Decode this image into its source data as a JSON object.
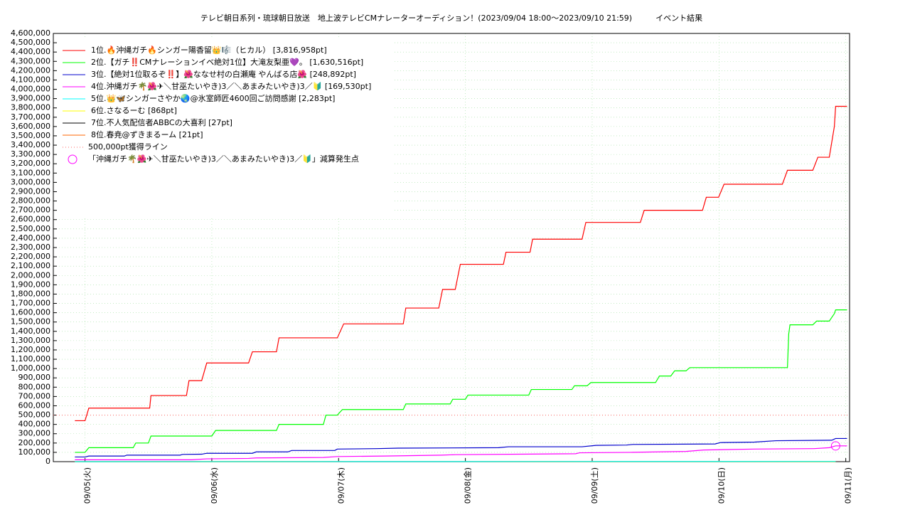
{
  "chart_data": {
    "type": "line",
    "title": "テレビ朝日系列・琉球朝日放送　地上波テレビCMナレーターオーディション！(2023/09/04 18:00〜2023/09/10 21:59)　　　イベント結果",
    "xlim": [
      4.75,
      11.03
    ],
    "xticks": [
      {
        "value": 5,
        "label": "09/05(火)"
      },
      {
        "value": 6,
        "label": "09/06(水)"
      },
      {
        "value": 7,
        "label": "09/07(木)"
      },
      {
        "value": 8,
        "label": "09/08(金)"
      },
      {
        "value": 9,
        "label": "09/09(土)"
      },
      {
        "value": 10,
        "label": "09/10(日)"
      },
      {
        "value": 11,
        "label": "09/11(月)"
      }
    ],
    "ylim": [
      0,
      4600000
    ],
    "yticks": [
      0,
      {
        "value": 100000,
        "label": "100,000"
      },
      {
        "value": 200000,
        "label": "200,000"
      },
      {
        "value": 300000,
        "label": "300,000"
      },
      {
        "value": 400000,
        "label": "400,000"
      },
      {
        "value": 500000,
        "label": "500,000"
      },
      {
        "value": 600000,
        "label": "600,000"
      },
      {
        "value": 700000,
        "label": "700,000"
      },
      {
        "value": 800000,
        "label": "800,000"
      },
      {
        "value": 900000,
        "label": "900,000"
      },
      {
        "value": 1000000,
        "label": "1,000,000"
      },
      {
        "value": 1100000,
        "label": "1,100,000"
      },
      {
        "value": 1200000,
        "label": "1,200,000"
      },
      {
        "value": 1300000,
        "label": "1,300,000"
      },
      {
        "value": 1400000,
        "label": "1,400,000"
      },
      {
        "value": 1500000,
        "label": "1,500,000"
      },
      {
        "value": 1600000,
        "label": "1,600,000"
      },
      {
        "value": 1700000,
        "label": "1,700,000"
      },
      {
        "value": 1800000,
        "label": "1,800,000"
      },
      {
        "value": 1900000,
        "label": "1,900,000"
      },
      {
        "value": 2000000,
        "label": "2,000,000"
      },
      {
        "value": 2100000,
        "label": "2,100,000"
      },
      {
        "value": 2200000,
        "label": "2,200,000"
      },
      {
        "value": 2300000,
        "label": "2,300,000"
      },
      {
        "value": 2400000,
        "label": "2,400,000"
      },
      {
        "value": 2500000,
        "label": "2,500,000"
      },
      {
        "value": 2600000,
        "label": "2,600,000"
      },
      {
        "value": 2700000,
        "label": "2,700,000"
      },
      {
        "value": 2800000,
        "label": "2,800,000"
      },
      {
        "value": 2900000,
        "label": "2,900,000"
      },
      {
        "value": 3000000,
        "label": "3,000,000"
      },
      {
        "value": 3100000,
        "label": "3,100,000"
      },
      {
        "value": 3200000,
        "label": "3,200,000"
      },
      {
        "value": 3300000,
        "label": "3,300,000"
      },
      {
        "value": 3400000,
        "label": "3,400,000"
      },
      {
        "value": 3500000,
        "label": "3,500,000"
      },
      {
        "value": 3600000,
        "label": "3,600,000"
      },
      {
        "value": 3700000,
        "label": "3,700,000"
      },
      {
        "value": 3800000,
        "label": "3,800,000"
      },
      {
        "value": 3900000,
        "label": "3,900,000"
      },
      {
        "value": 4000000,
        "label": "4,000,000"
      },
      {
        "value": 4100000,
        "label": "4,100,000"
      },
      {
        "value": 4200000,
        "label": "4,200,000"
      },
      {
        "value": 4300000,
        "label": "4,300,000"
      },
      {
        "value": 4400000,
        "label": "4,400,000"
      },
      {
        "value": 4500000,
        "label": "4,500,000"
      },
      {
        "value": 4600000,
        "label": "4,600,000"
      }
    ],
    "grid": true,
    "series": [
      {
        "name": "1位.🔥沖縄ガチ🔥シンガー陽香留👑🎼（ヒカル） [3,816,958pt]",
        "color": "#ff0000",
        "x": [
          4.92,
          5.0,
          5.03,
          5.51,
          5.52,
          5.8,
          5.82,
          5.92,
          5.96,
          6.29,
          6.32,
          6.51,
          6.53,
          6.99,
          7.04,
          7.51,
          7.53,
          7.79,
          7.82,
          7.92,
          7.96,
          8.3,
          8.32,
          8.51,
          8.53,
          8.92,
          8.95,
          9.38,
          9.41,
          9.87,
          9.9,
          9.997,
          10.04,
          10.5,
          10.54,
          10.74,
          10.78,
          10.87,
          10.91,
          10.92,
          11.01
        ],
        "values": [
          440000,
          440000,
          575000,
          575000,
          710000,
          710000,
          870000,
          870000,
          1060000,
          1060000,
          1180000,
          1180000,
          1330000,
          1330000,
          1480000,
          1480000,
          1650000,
          1650000,
          1850000,
          1850000,
          2120000,
          2120000,
          2250000,
          2250000,
          2390000,
          2390000,
          2570000,
          2570000,
          2700000,
          2700000,
          2840000,
          2840000,
          2980000,
          2980000,
          3130000,
          3130000,
          3270000,
          3270000,
          3600000,
          3816958,
          3816958
        ]
      },
      {
        "name": "2位.【ガチ‼️CMナレーションイベ絶対1位】大滝友梨亜💜。 [1,630,516pt]",
        "color": "#00ff00",
        "x": [
          4.92,
          5.0,
          5.03,
          5.38,
          5.4,
          5.5,
          5.52,
          6.0,
          6.03,
          6.51,
          6.53,
          6.88,
          6.9,
          6.99,
          7.03,
          7.51,
          7.53,
          7.88,
          7.9,
          8.0,
          8.02,
          8.5,
          8.52,
          8.84,
          8.86,
          8.96,
          8.99,
          9.5,
          9.53,
          9.62,
          9.65,
          9.74,
          9.77,
          10.54,
          10.55,
          10.56,
          10.74,
          10.77,
          10.87,
          10.91,
          10.92,
          11.01
        ],
        "values": [
          100000,
          100000,
          150000,
          150000,
          200000,
          200000,
          275000,
          275000,
          335000,
          335000,
          400000,
          400000,
          500000,
          500000,
          560000,
          560000,
          620000,
          620000,
          670000,
          670000,
          715000,
          715000,
          775000,
          775000,
          815000,
          815000,
          850000,
          850000,
          920000,
          920000,
          975000,
          975000,
          1010000,
          1010000,
          1370000,
          1470000,
          1470000,
          1510000,
          1510000,
          1590000,
          1630516,
          1630516
        ]
      },
      {
        "name": "3位.【絶対1位取るぞ‼️】🌺ななせ村の白瀬庵 やんばる店🌺 [248,892pt]",
        "color": "#0000cc",
        "x": [
          4.92,
          5.0,
          5.03,
          5.31,
          5.33,
          5.75,
          5.77,
          5.92,
          5.96,
          6.32,
          6.35,
          6.6,
          6.63,
          6.97,
          6.99,
          7.3,
          7.47,
          8.26,
          8.34,
          8.92,
          9.03,
          9.27,
          9.32,
          9.97,
          10.01,
          10.28,
          10.45,
          10.89,
          10.92,
          11.01
        ],
        "values": [
          50000,
          50000,
          60000,
          60000,
          70000,
          70000,
          78000,
          80000,
          90000,
          90000,
          105000,
          105000,
          120000,
          120000,
          135000,
          140000,
          145000,
          150000,
          160000,
          160000,
          175000,
          178000,
          185000,
          190000,
          205000,
          210000,
          225000,
          230000,
          248892,
          248892
        ]
      },
      {
        "name": "4位.沖縄ガチ🌴🌺✈＼甘巫たいやき)3／＼あまみたいやき)3／🔰 [169,530pt]",
        "color": "#ff00ff",
        "x": [
          4.92,
          5.84,
          5.96,
          6.29,
          6.35,
          6.88,
          6.99,
          7.36,
          7.81,
          7.92,
          8.87,
          8.9,
          9.3,
          9.74,
          9.88,
          10.28,
          10.75,
          10.87,
          10.92,
          11.01
        ],
        "values": [
          20000,
          20000,
          30000,
          35000,
          40000,
          45000,
          55000,
          60000,
          70000,
          75000,
          85000,
          95000,
          100000,
          110000,
          125000,
          135000,
          140000,
          150000,
          169530,
          169530
        ]
      },
      {
        "name": "5位.👑🦋シンガーさやか🌏@氷室師匠4600回ご訪問感謝 [2,283pt]",
        "color": "#00ffff",
        "x": [
          4.92,
          10.92
        ],
        "values": [
          0,
          2283
        ]
      },
      {
        "name": "6位.さなるーむ [868pt]",
        "color": "#ffff00",
        "x": [
          4.92,
          10.92
        ],
        "values": [
          0,
          868
        ]
      },
      {
        "name": "7位.不人気配信者ABBCの大喜利 [27pt]",
        "color": "#000000",
        "x": [
          4.92,
          10.92
        ],
        "values": [
          0,
          27
        ]
      },
      {
        "name": "8位.春尭@ずきまるーム [21pt]",
        "color": "#ff6600",
        "x": [
          4.92,
          10.92
        ],
        "values": [
          0,
          21
        ]
      }
    ],
    "reference_line": {
      "name": "500,000pt獲得ライン",
      "value": 500000,
      "color": "#ff6666"
    },
    "marker": {
      "name": "「沖縄ガチ🌴🌺✈＼甘巫たいやき)3／＼あまみたいやき)3／🔰」減算発生点",
      "x": 10.92,
      "value": 169530,
      "color": "#ff00ff"
    }
  }
}
